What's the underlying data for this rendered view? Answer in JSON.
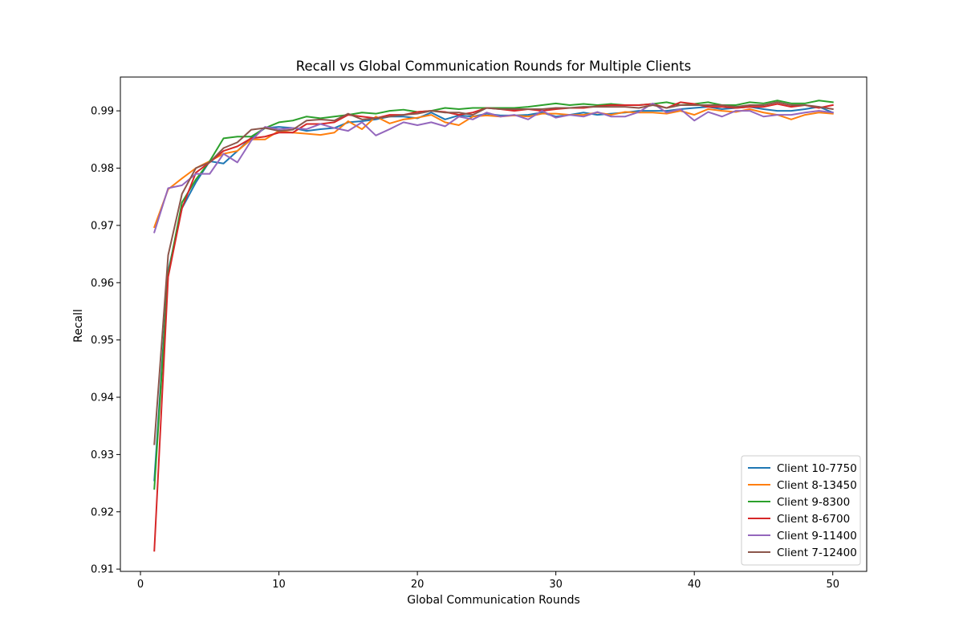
{
  "chart_data": {
    "type": "line",
    "title": "Recall vs Global Communication Rounds for Multiple Clients",
    "xlabel": "Global Communication Rounds",
    "ylabel": "Recall",
    "xlim": [
      -1.45,
      52.45
    ],
    "ylim": [
      0.9096,
      0.9959
    ],
    "xticks": [
      0,
      10,
      20,
      30,
      40,
      50
    ],
    "yticks": [
      0.91,
      0.92,
      0.93,
      0.94,
      0.95,
      0.96,
      0.97,
      0.98,
      0.99
    ],
    "grid": false,
    "legend_position": "lower-right",
    "x": [
      1,
      2,
      3,
      4,
      5,
      6,
      7,
      8,
      9,
      10,
      11,
      12,
      13,
      14,
      15,
      16,
      17,
      18,
      19,
      20,
      21,
      22,
      23,
      24,
      25,
      26,
      27,
      28,
      29,
      30,
      31,
      32,
      33,
      34,
      35,
      36,
      37,
      38,
      39,
      40,
      41,
      42,
      43,
      44,
      45,
      46,
      47,
      48,
      49,
      50
    ],
    "series": [
      {
        "name": "Client 10-7750",
        "color": "#1f77b4",
        "values": [
          0.9255,
          0.962,
          0.973,
          0.9775,
          0.9812,
          0.9808,
          0.983,
          0.9853,
          0.987,
          0.9872,
          0.987,
          0.9865,
          0.9868,
          0.987,
          0.988,
          0.9882,
          0.9885,
          0.989,
          0.989,
          0.9887,
          0.9897,
          0.9885,
          0.9892,
          0.989,
          0.9895,
          0.9892,
          0.9892,
          0.9893,
          0.9897,
          0.989,
          0.9893,
          0.9897,
          0.9893,
          0.9895,
          0.9897,
          0.99,
          0.99,
          0.99,
          0.9903,
          0.9905,
          0.9907,
          0.9903,
          0.9905,
          0.9907,
          0.9903,
          0.99,
          0.99,
          0.9903,
          0.9907,
          0.9897
        ]
      },
      {
        "name": "Client 8-13450",
        "color": "#ff7f0e",
        "values": [
          0.9697,
          0.9763,
          0.9782,
          0.98,
          0.9812,
          0.9825,
          0.983,
          0.985,
          0.985,
          0.9865,
          0.9862,
          0.986,
          0.9858,
          0.9862,
          0.9882,
          0.9868,
          0.989,
          0.9878,
          0.9885,
          0.9888,
          0.9893,
          0.988,
          0.9875,
          0.989,
          0.9892,
          0.989,
          0.9892,
          0.989,
          0.9895,
          0.9895,
          0.9893,
          0.9893,
          0.9897,
          0.9893,
          0.9898,
          0.9897,
          0.9897,
          0.9895,
          0.99,
          0.9893,
          0.9903,
          0.99,
          0.9898,
          0.9903,
          0.9897,
          0.9893,
          0.9885,
          0.9893,
          0.9897,
          0.9895
        ]
      },
      {
        "name": "Client 9-8300",
        "color": "#2ca02c",
        "values": [
          0.924,
          0.9615,
          0.974,
          0.978,
          0.9812,
          0.9852,
          0.9855,
          0.9855,
          0.987,
          0.988,
          0.9883,
          0.989,
          0.9887,
          0.989,
          0.9893,
          0.9897,
          0.9895,
          0.99,
          0.9902,
          0.9898,
          0.99,
          0.9905,
          0.9903,
          0.9905,
          0.9905,
          0.9905,
          0.9905,
          0.9907,
          0.991,
          0.9913,
          0.991,
          0.9912,
          0.991,
          0.9912,
          0.991,
          0.991,
          0.9912,
          0.9915,
          0.991,
          0.9912,
          0.9915,
          0.991,
          0.991,
          0.9915,
          0.9913,
          0.9918,
          0.9913,
          0.9913,
          0.9918,
          0.9915
        ]
      },
      {
        "name": "Client 8-6700",
        "color": "#d62728",
        "values": [
          0.9132,
          0.961,
          0.973,
          0.9792,
          0.981,
          0.983,
          0.9838,
          0.9852,
          0.9855,
          0.9862,
          0.9862,
          0.9877,
          0.9877,
          0.988,
          0.9893,
          0.989,
          0.9887,
          0.9893,
          0.9893,
          0.9898,
          0.99,
          0.9898,
          0.9893,
          0.9897,
          0.9905,
          0.9903,
          0.99,
          0.9903,
          0.99,
          0.9903,
          0.9905,
          0.9905,
          0.9908,
          0.991,
          0.991,
          0.991,
          0.9912,
          0.9905,
          0.9915,
          0.9912,
          0.9907,
          0.9907,
          0.9905,
          0.9907,
          0.9907,
          0.9912,
          0.9907,
          0.991,
          0.9905,
          0.991
        ]
      },
      {
        "name": "Client 9-11400",
        "color": "#9467bd",
        "values": [
          0.9688,
          0.9765,
          0.977,
          0.979,
          0.979,
          0.9825,
          0.981,
          0.9848,
          0.9872,
          0.9868,
          0.987,
          0.9868,
          0.9877,
          0.987,
          0.9865,
          0.988,
          0.9857,
          0.9868,
          0.988,
          0.9875,
          0.988,
          0.9873,
          0.989,
          0.9885,
          0.9897,
          0.989,
          0.9893,
          0.9885,
          0.99,
          0.9888,
          0.9893,
          0.989,
          0.9898,
          0.989,
          0.989,
          0.9898,
          0.9913,
          0.9897,
          0.9903,
          0.9883,
          0.9898,
          0.989,
          0.99,
          0.99,
          0.989,
          0.9893,
          0.9893,
          0.9897,
          0.99,
          0.9897
        ]
      },
      {
        "name": "Client 7-12400",
        "color": "#8c564b",
        "values": [
          0.9318,
          0.9648,
          0.9755,
          0.98,
          0.981,
          0.9835,
          0.9845,
          0.9867,
          0.987,
          0.9865,
          0.9867,
          0.9883,
          0.9885,
          0.9883,
          0.9895,
          0.9885,
          0.9887,
          0.989,
          0.9893,
          0.9895,
          0.99,
          0.9897,
          0.9897,
          0.9893,
          0.9905,
          0.9903,
          0.9903,
          0.9903,
          0.9903,
          0.9905,
          0.9905,
          0.9907,
          0.9907,
          0.9907,
          0.9907,
          0.9905,
          0.991,
          0.9905,
          0.991,
          0.991,
          0.991,
          0.991,
          0.9907,
          0.991,
          0.991,
          0.9915,
          0.991,
          0.991,
          0.9907,
          0.9903
        ]
      }
    ]
  }
}
